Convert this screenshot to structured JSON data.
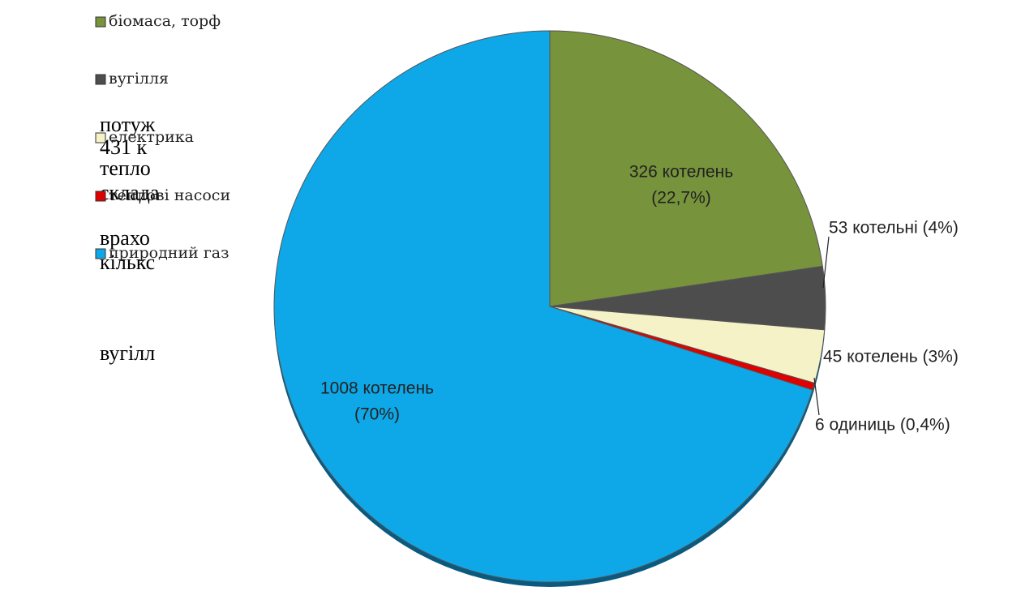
{
  "page_text": [
    "потуж",
    "431 к",
    "тепло",
    "склада",
    "врахо",
    "кількс",
    "вугілл"
  ],
  "chart_data": {
    "type": "pie",
    "categories": [
      "біомаса, торф",
      "вугілля",
      "електрика",
      "теплові насоси",
      "природний газ"
    ],
    "values": [
      326,
      53,
      45,
      6,
      1008
    ],
    "value_labels": [
      [
        "326 котелень",
        "(22,7%)"
      ],
      [
        "53 котельні (4%)"
      ],
      [
        "45 котелень (3%)"
      ],
      [
        "6 одиниць (0,4%)"
      ],
      [
        "1008 котелень",
        "(70%)"
      ]
    ],
    "colors": [
      "#77933c",
      "#4d4d4d",
      "#f6f2c8",
      "#e00000",
      "#0ea8e8"
    ]
  }
}
